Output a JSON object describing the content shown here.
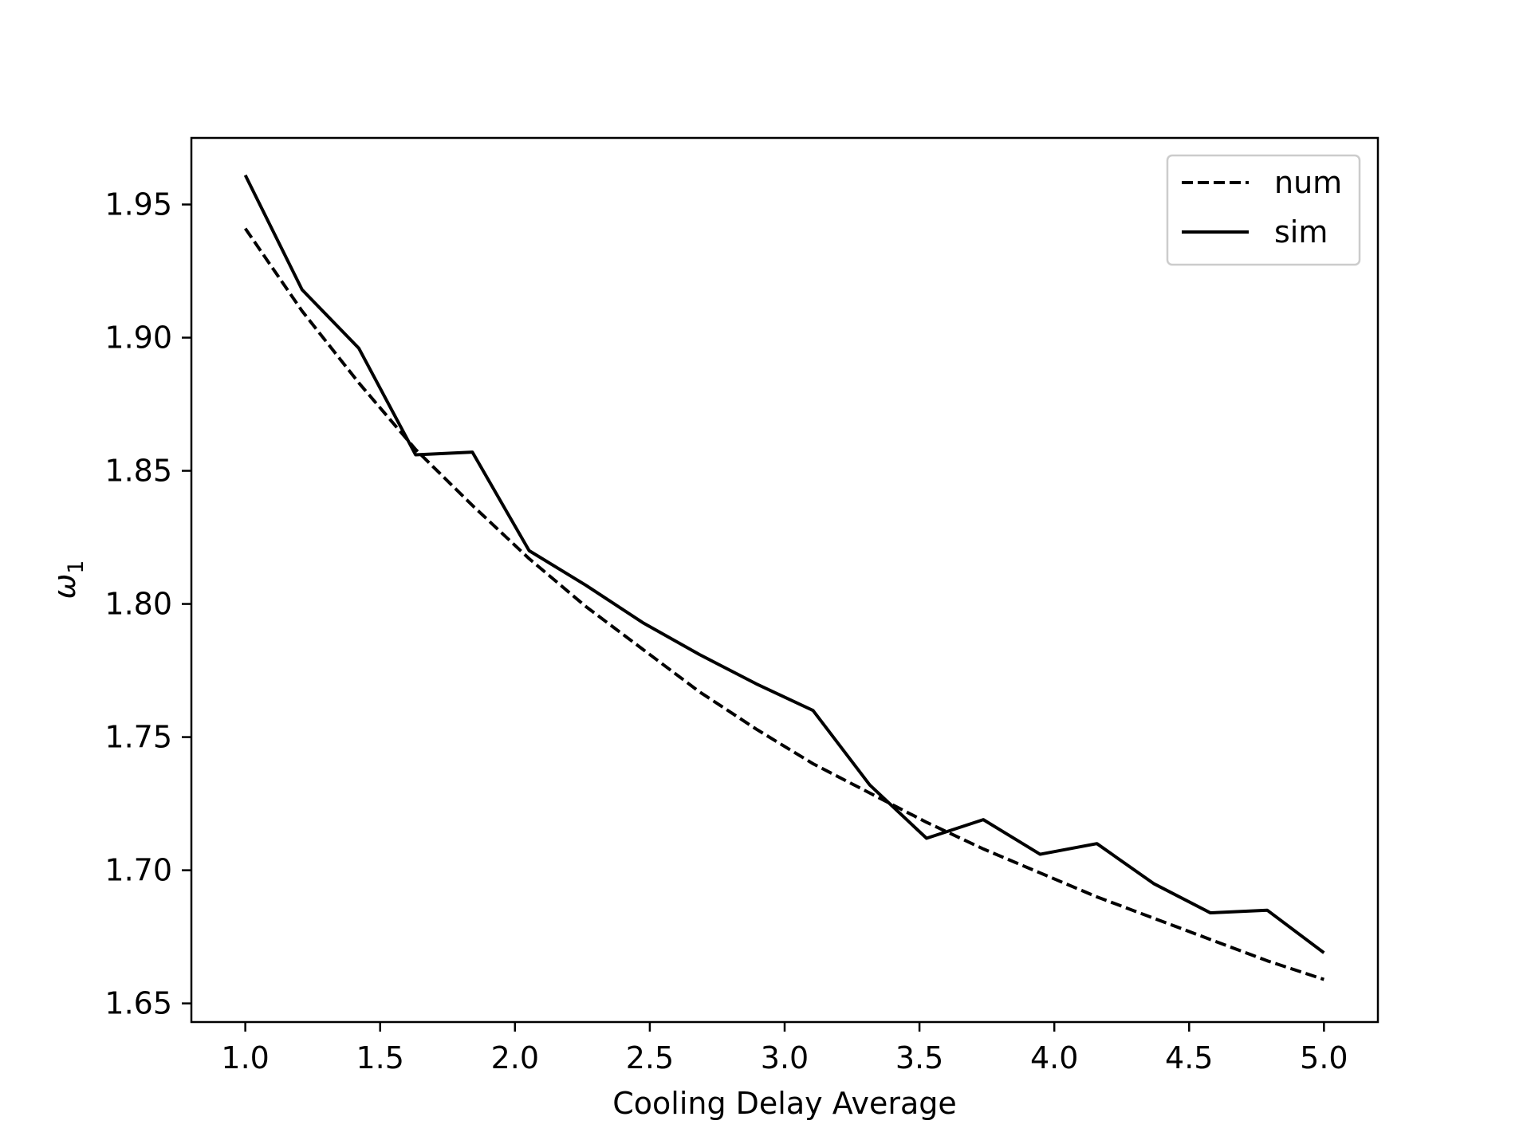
{
  "chart_data": {
    "type": "line",
    "title": "",
    "xlabel": "Cooling Delay Average",
    "ylabel": "ω",
    "ylabel_subscript": "1",
    "xlim": [
      0.8,
      5.2
    ],
    "ylim": [
      1.643,
      1.975
    ],
    "xticks": [
      1.0,
      1.5,
      2.0,
      2.5,
      3.0,
      3.5,
      4.0,
      4.5,
      5.0
    ],
    "xtick_labels": [
      "1.0",
      "1.5",
      "2.0",
      "2.5",
      "3.0",
      "3.5",
      "4.0",
      "4.5",
      "5.0"
    ],
    "yticks": [
      1.65,
      1.7,
      1.75,
      1.8,
      1.85,
      1.9,
      1.95
    ],
    "ytick_labels": [
      "1.65",
      "1.70",
      "1.75",
      "1.80",
      "1.85",
      "1.90",
      "1.95"
    ],
    "grid": false,
    "legend_position": "top-right",
    "x": [
      1.0,
      1.2105,
      1.4211,
      1.6316,
      1.8421,
      2.0526,
      2.2632,
      2.4737,
      2.6842,
      2.8947,
      3.1053,
      3.3158,
      3.5263,
      3.7368,
      3.9474,
      4.1579,
      4.3684,
      4.5789,
      4.7895,
      5.0
    ],
    "series": [
      {
        "name": "num",
        "style": "dashed",
        "color": "#000000",
        "values": [
          1.941,
          1.91,
          1.883,
          1.858,
          1.837,
          1.817,
          1.799,
          1.783,
          1.767,
          1.753,
          1.74,
          1.729,
          1.718,
          1.708,
          1.699,
          1.69,
          1.682,
          1.674,
          1.666,
          1.659
        ]
      },
      {
        "name": "sim",
        "style": "solid",
        "color": "#000000",
        "values": [
          1.961,
          1.918,
          1.896,
          1.856,
          1.857,
          1.82,
          1.807,
          1.793,
          1.781,
          1.77,
          1.76,
          1.732,
          1.712,
          1.719,
          1.706,
          1.71,
          1.695,
          1.684,
          1.685,
          1.669
        ]
      }
    ]
  }
}
